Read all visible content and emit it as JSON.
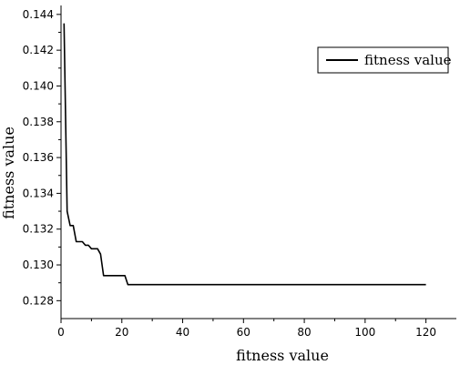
{
  "chart_data": {
    "type": "line",
    "title": "",
    "xlabel": "fitness value",
    "ylabel": "fitness value",
    "xlim": [
      0,
      130
    ],
    "ylim": [
      0.127,
      0.1445
    ],
    "xticks": [
      0,
      20,
      40,
      60,
      80,
      100,
      120
    ],
    "yticks": [
      0.128,
      0.13,
      0.132,
      0.134,
      0.136,
      0.138,
      0.14,
      0.142,
      0.144
    ],
    "ytick_labels": [
      "0.128",
      "0.130",
      "0.132",
      "0.134",
      "0.136",
      "0.138",
      "0.140",
      "0.142",
      "0.144"
    ],
    "xtick_labels": [
      "0",
      "20",
      "40",
      "60",
      "80",
      "100",
      "120"
    ],
    "grid": false,
    "legend": {
      "position": "top-right",
      "entries": [
        "fitness value"
      ]
    },
    "series": [
      {
        "name": "fitness value",
        "color": "#000000",
        "x": [
          1,
          2,
          3,
          4,
          5,
          6,
          7,
          8,
          9,
          10,
          11,
          12,
          13,
          14,
          15,
          21,
          22,
          23,
          55,
          80,
          106,
          120
        ],
        "y": [
          0.1435,
          0.133,
          0.1322,
          0.1322,
          0.1313,
          0.1313,
          0.1313,
          0.1311,
          0.1311,
          0.1309,
          0.1309,
          0.1309,
          0.1306,
          0.1294,
          0.1294,
          0.1294,
          0.1289,
          0.1289,
          0.1289,
          0.1289,
          0.1289,
          0.1289
        ]
      }
    ]
  }
}
